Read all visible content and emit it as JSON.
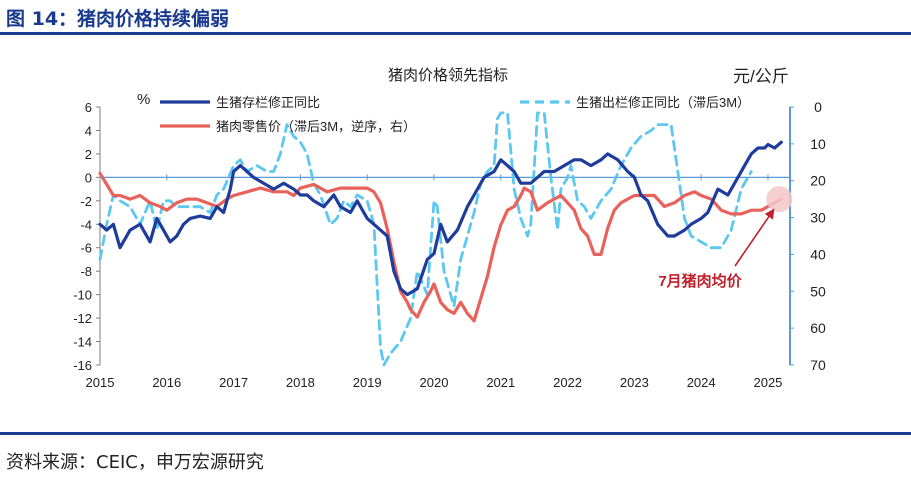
{
  "figure": {
    "title": "图 14：猪肉价格持续偏弱",
    "source": "资料来源：CEIC，申万宏源研究"
  },
  "colors": {
    "title_blue": "#1a3a8f",
    "dark_blue": "#1f3c9a",
    "red": "#e8625b",
    "light_blue": "#5bc8f0",
    "axis": "#7f7f7f",
    "zero_line": "#5b9bd5",
    "annotation": "#c0202b",
    "highlight": "#f3c7c7"
  },
  "chart_data": {
    "type": "line",
    "title": "猪肉价格领先指标",
    "left_axis": {
      "unit_label": "%",
      "ylim": [
        -16,
        6
      ],
      "ticks": [
        "6",
        "4",
        "2",
        "0",
        "-2",
        "-4",
        "-6",
        "-8",
        "-10",
        "-12",
        "-14",
        "-16"
      ]
    },
    "right_axis": {
      "unit_label": "元/公斤",
      "ylim": [
        70,
        0
      ],
      "inverted": true,
      "ticks": [
        "0",
        "10",
        "20",
        "30",
        "40",
        "50",
        "60",
        "70"
      ]
    },
    "x_axis": {
      "range": [
        2015.0,
        2025.33
      ],
      "tick_values": [
        2015,
        2016,
        2017,
        2018,
        2019,
        2020,
        2021,
        2022,
        2023,
        2024,
        2025
      ],
      "tick_labels": [
        "2015",
        "2016",
        "2017",
        "2018",
        "2019",
        "2020",
        "2021",
        "2022",
        "2023",
        "2024",
        "2025"
      ]
    },
    "series": [
      {
        "name": "生猪存栏修正同比",
        "axis": "left",
        "color": "#1f3c9a",
        "style": "solid",
        "x": [
          2015.0,
          2015.1,
          2015.2,
          2015.3,
          2015.45,
          2015.6,
          2015.75,
          2015.85,
          2015.95,
          2016.05,
          2016.15,
          2016.25,
          2016.35,
          2016.5,
          2016.65,
          2016.75,
          2016.85,
          2016.95,
          2017.0,
          2017.1,
          2017.2,
          2017.3,
          2017.45,
          2017.6,
          2017.75,
          2017.9,
          2018.0,
          2018.1,
          2018.2,
          2018.35,
          2018.5,
          2018.6,
          2018.75,
          2018.85,
          2018.95,
          2019.0,
          2019.1,
          2019.2,
          2019.3,
          2019.4,
          2019.5,
          2019.6,
          2019.75,
          2019.9,
          2020.0,
          2020.1,
          2020.2,
          2020.35,
          2020.5,
          2020.6,
          2020.75,
          2020.9,
          2021.0,
          2021.1,
          2021.2,
          2021.3,
          2021.45,
          2021.55,
          2021.65,
          2021.8,
          2021.95,
          2022.1,
          2022.2,
          2022.35,
          2022.5,
          2022.6,
          2022.75,
          2022.9,
          2023.0,
          2023.1,
          2023.2,
          2023.35,
          2023.5,
          2023.6,
          2023.75,
          2023.85,
          2024.0,
          2024.1,
          2024.25,
          2024.4,
          2024.55,
          2024.65,
          2024.75,
          2024.85,
          2024.95,
          2025.0,
          2025.1,
          2025.2
        ],
        "y": [
          -4.0,
          -4.5,
          -4.0,
          -6.0,
          -4.5,
          -4.0,
          -5.5,
          -3.5,
          -4.5,
          -5.5,
          -5.0,
          -4.0,
          -3.5,
          -3.3,
          -3.5,
          -2.5,
          -3.0,
          -1.0,
          0.5,
          1.0,
          0.5,
          0.0,
          -0.5,
          -1.0,
          -0.5,
          -1.0,
          -1.5,
          -1.5,
          -2.0,
          -2.5,
          -1.5,
          -2.5,
          -3.0,
          -2.0,
          -3.0,
          -3.5,
          -4.0,
          -4.5,
          -5.0,
          -8.0,
          -9.5,
          -10.0,
          -9.5,
          -7.0,
          -6.5,
          -4.0,
          -5.5,
          -4.5,
          -2.5,
          -1.5,
          0.0,
          0.5,
          1.5,
          1.0,
          0.5,
          -0.5,
          -0.5,
          0.0,
          0.5,
          0.5,
          1.0,
          1.5,
          1.5,
          1.0,
          1.5,
          2.0,
          1.5,
          0.5,
          0.0,
          -1.5,
          -2.0,
          -4.0,
          -5.0,
          -5.0,
          -4.5,
          -4.0,
          -3.5,
          -3.0,
          -1.0,
          -1.5,
          0.0,
          1.0,
          2.0,
          2.5,
          2.5,
          2.8,
          2.5,
          3.0
        ]
      },
      {
        "name": "猪肉零售价（滞后3M，逆序，右）",
        "axis": "right",
        "color": "#e8625b",
        "style": "solid",
        "x": [
          2015.0,
          2015.1,
          2015.2,
          2015.3,
          2015.45,
          2015.6,
          2015.75,
          2015.9,
          2016.0,
          2016.15,
          2016.3,
          2016.45,
          2016.6,
          2016.75,
          2016.9,
          2017.0,
          2017.2,
          2017.4,
          2017.6,
          2017.8,
          2017.9,
          2018.0,
          2018.2,
          2018.4,
          2018.6,
          2018.75,
          2018.9,
          2019.0,
          2019.1,
          2019.2,
          2019.3,
          2019.4,
          2019.5,
          2019.6,
          2019.65,
          2019.75,
          2019.85,
          2019.95,
          2020.0,
          2020.1,
          2020.2,
          2020.3,
          2020.4,
          2020.5,
          2020.6,
          2020.7,
          2020.8,
          2020.9,
          2021.0,
          2021.1,
          2021.2,
          2021.3,
          2021.35,
          2021.45,
          2021.55,
          2021.7,
          2021.8,
          2021.9,
          2022.0,
          2022.1,
          2022.2,
          2022.3,
          2022.4,
          2022.5,
          2022.6,
          2022.7,
          2022.8,
          2022.9,
          2023.0,
          2023.15,
          2023.3,
          2023.45,
          2023.6,
          2023.75,
          2023.9,
          2024.0,
          2024.15,
          2024.3,
          2024.45,
          2024.6,
          2024.75,
          2024.9,
          2025.0,
          2025.1,
          2025.2
        ],
        "y": [
          18,
          21,
          24,
          24,
          25,
          24,
          26,
          27,
          28,
          26,
          25,
          25,
          26,
          27,
          25,
          24,
          23,
          22,
          23,
          23,
          24,
          22,
          21,
          23,
          22,
          22,
          22,
          22,
          23,
          26,
          33,
          42,
          50,
          53,
          55,
          57,
          53,
          50,
          48,
          53,
          55,
          56,
          53,
          56,
          58,
          52,
          46,
          38,
          32,
          28,
          27,
          24,
          22,
          23,
          28,
          26,
          25,
          24,
          26,
          28,
          33,
          35,
          40,
          40,
          33,
          28,
          26,
          25,
          24,
          24,
          24,
          27,
          26,
          24,
          23,
          24,
          25,
          28,
          29,
          29,
          28,
          28,
          27,
          26,
          25
        ]
      },
      {
        "name": "生猪出栏修正同比（滞后3M）",
        "axis": "left",
        "color": "#5bc8f0",
        "style": "dashed",
        "x": [
          2015.0,
          2015.1,
          2015.2,
          2015.3,
          2015.45,
          2015.6,
          2015.75,
          2015.85,
          2015.95,
          2016.05,
          2016.15,
          2016.25,
          2016.35,
          2016.5,
          2016.65,
          2016.75,
          2016.85,
          2017.0,
          2017.1,
          2017.2,
          2017.35,
          2017.5,
          2017.6,
          2017.7,
          2017.8,
          2017.9,
          2018.0,
          2018.1,
          2018.2,
          2018.3,
          2018.45,
          2018.55,
          2018.65,
          2018.75,
          2018.85,
          2019.0,
          2019.1,
          2019.2,
          2019.25,
          2019.35,
          2019.5,
          2019.65,
          2019.75,
          2019.9,
          2020.0,
          2020.05,
          2020.15,
          2020.3,
          2020.4,
          2020.5,
          2020.6,
          2020.7,
          2020.8,
          2020.9,
          2020.95,
          2021.0,
          2021.05,
          2021.1,
          2021.2,
          2021.3,
          2021.4,
          2021.45,
          2021.55,
          2021.65,
          2021.75,
          2021.85,
          2021.9,
          2022.0,
          2022.05,
          2022.15,
          2022.25,
          2022.35,
          2022.5,
          2022.65,
          2022.8,
          2022.95,
          2023.1,
          2023.25,
          2023.35,
          2023.45,
          2023.55,
          2023.65,
          2023.75,
          2023.85,
          2024.0,
          2024.15,
          2024.3,
          2024.45,
          2024.6,
          2024.75
        ],
        "y": [
          -7.0,
          -4.0,
          -1.5,
          -2.0,
          -2.5,
          -4.0,
          -2.0,
          -4.5,
          -2.0,
          -2.0,
          -2.5,
          -2.5,
          -2.5,
          -2.5,
          -3.0,
          -1.5,
          -1.0,
          1.0,
          1.5,
          0.5,
          1.0,
          0.5,
          0.5,
          2.0,
          4.5,
          3.5,
          3.0,
          2.0,
          -0.5,
          -1.5,
          -4.0,
          -3.5,
          -2.0,
          -2.5,
          -1.5,
          -2.0,
          -4.0,
          -14.5,
          -16.0,
          -15.0,
          -14.0,
          -12.0,
          -8.0,
          -10.0,
          -2.0,
          -2.5,
          -8.0,
          -11.0,
          -7.0,
          -5.0,
          -3.0,
          -0.5,
          0.5,
          1.0,
          5.0,
          5.5,
          5.5,
          5.5,
          -1.0,
          -3.5,
          -5.0,
          -4.0,
          5.5,
          5.5,
          0.0,
          -4.5,
          -1.0,
          0.0,
          1.0,
          -2.0,
          -2.5,
          -3.5,
          -2.0,
          -1.0,
          1.0,
          2.5,
          3.5,
          4.0,
          4.5,
          4.5,
          4.5,
          0.5,
          -3.5,
          -5.0,
          -5.5,
          -6.0,
          -6.0,
          -4.5,
          -1.0,
          0.5
        ]
      }
    ],
    "annotation": {
      "text": "7月猪肉均价",
      "points_to": {
        "x": 2025.17,
        "y": 25
      }
    }
  }
}
